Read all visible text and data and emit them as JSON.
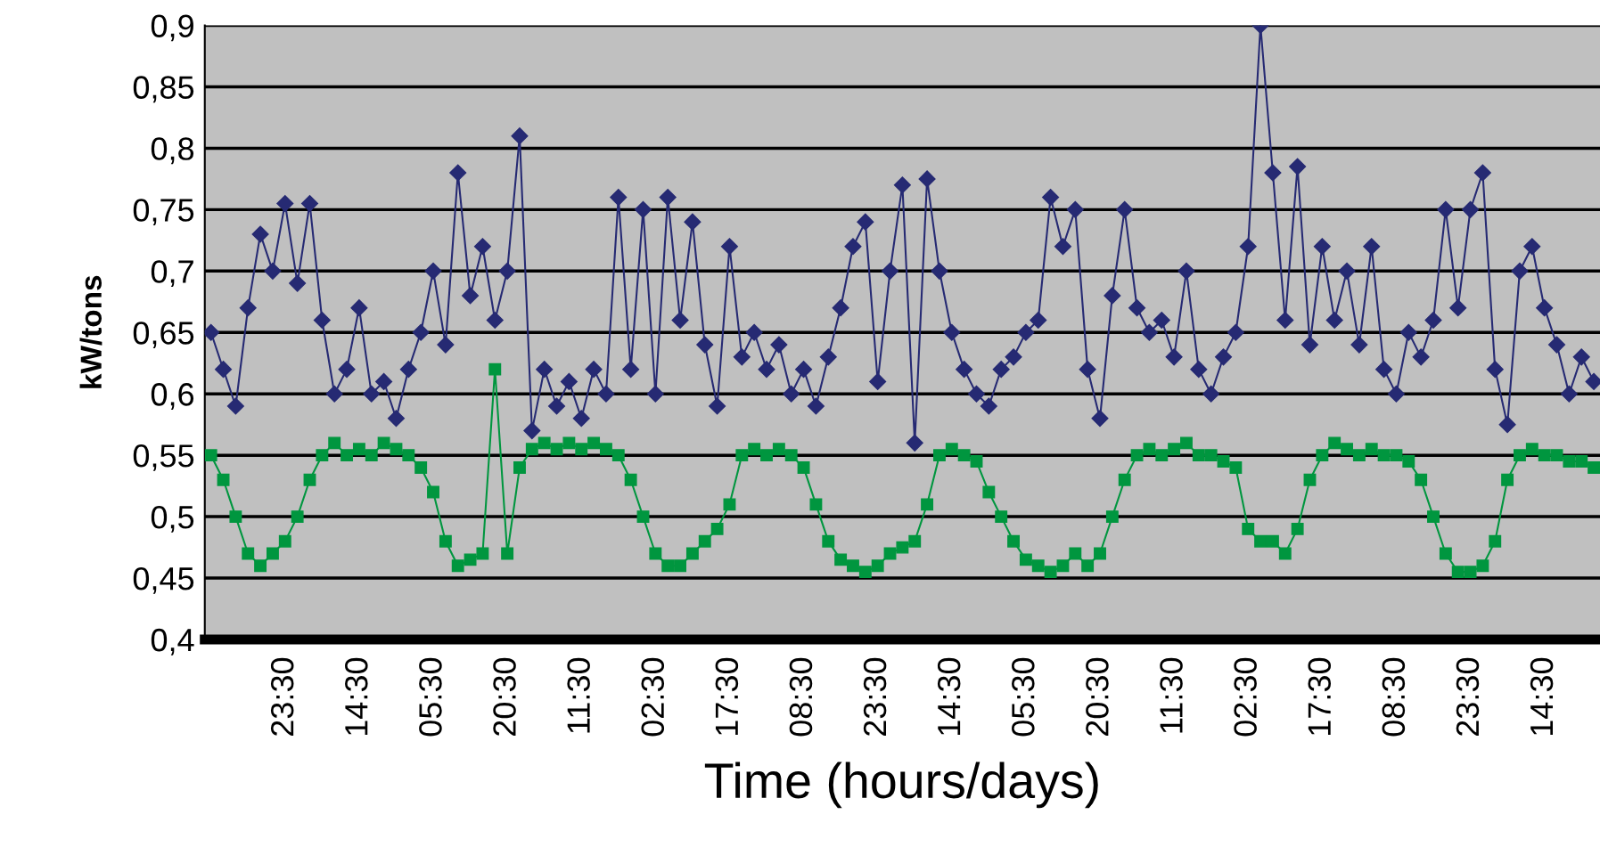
{
  "chart_data": {
    "type": "line",
    "xlabel": "Time (hours/days)",
    "ylabel": "kW/tons",
    "categories": [
      null,
      null,
      null,
      null,
      null,
      null,
      "23:30",
      null,
      null,
      null,
      null,
      null,
      "14:30",
      null,
      null,
      null,
      null,
      null,
      "05:30",
      null,
      null,
      null,
      null,
      null,
      "20:30",
      null,
      null,
      null,
      null,
      null,
      "11:30",
      null,
      null,
      null,
      null,
      null,
      "02:30",
      null,
      null,
      null,
      null,
      null,
      "17:30",
      null,
      null,
      null,
      null,
      null,
      "08:30",
      null,
      null,
      null,
      null,
      null,
      "23:30",
      null,
      null,
      null,
      null,
      null,
      "14:30",
      null,
      null,
      null,
      null,
      null,
      "05:30",
      null,
      null,
      null,
      null,
      null,
      "20:30",
      null,
      null,
      null,
      null,
      null,
      "11:30",
      null,
      null,
      null,
      null,
      null,
      "02:30",
      null,
      null,
      null,
      null,
      null,
      "17:30",
      null,
      null,
      null,
      null,
      null,
      "08:30",
      null,
      null,
      null,
      null,
      null,
      "23:30",
      null,
      null,
      null,
      null,
      null,
      "14:30",
      null,
      null,
      null,
      null
    ],
    "series": [
      {
        "color": "#262a73",
        "marker": "diamond",
        "values": [
          0.65,
          0.62,
          0.59,
          0.67,
          0.73,
          0.7,
          0.755,
          0.69,
          0.755,
          0.66,
          0.6,
          0.62,
          0.67,
          0.6,
          0.61,
          0.58,
          0.62,
          0.65,
          0.7,
          0.64,
          0.78,
          0.68,
          0.72,
          0.66,
          0.7,
          0.81,
          0.57,
          0.62,
          0.59,
          0.61,
          0.58,
          0.62,
          0.6,
          0.76,
          0.62,
          0.75,
          0.6,
          0.76,
          0.66,
          0.74,
          0.64,
          0.59,
          0.72,
          0.63,
          0.65,
          0.62,
          0.64,
          0.6,
          0.62,
          0.59,
          0.63,
          0.67,
          0.72,
          0.74,
          0.61,
          0.7,
          0.77,
          0.56,
          0.775,
          0.7,
          0.65,
          0.62,
          0.6,
          0.59,
          0.62,
          0.63,
          0.65,
          0.66,
          0.76,
          0.72,
          0.75,
          0.62,
          0.58,
          0.68,
          0.75,
          0.67,
          0.65,
          0.66,
          0.63,
          0.7,
          0.62,
          0.6,
          0.63,
          0.65,
          0.72,
          0.9,
          0.78,
          0.66,
          0.785,
          0.64,
          0.72,
          0.66,
          0.7,
          0.64,
          0.72,
          0.62,
          0.6,
          0.65,
          0.63,
          0.66,
          0.75,
          0.67,
          0.75,
          0.78,
          0.62,
          0.575,
          0.7,
          0.72,
          0.67,
          0.64,
          0.6,
          0.63,
          0.61
        ]
      },
      {
        "color": "#00963f",
        "marker": "square",
        "values": [
          0.55,
          0.53,
          0.5,
          0.47,
          0.46,
          0.47,
          0.48,
          0.5,
          0.53,
          0.55,
          0.56,
          0.55,
          0.555,
          0.55,
          0.56,
          0.555,
          0.55,
          0.54,
          0.52,
          0.48,
          0.46,
          0.465,
          0.47,
          0.62,
          0.47,
          0.54,
          0.555,
          0.56,
          0.555,
          0.56,
          0.555,
          0.56,
          0.555,
          0.55,
          0.53,
          0.5,
          0.47,
          0.46,
          0.46,
          0.47,
          0.48,
          0.49,
          0.51,
          0.55,
          0.555,
          0.55,
          0.555,
          0.55,
          0.54,
          0.51,
          0.48,
          0.465,
          0.46,
          0.455,
          0.46,
          0.47,
          0.475,
          0.48,
          0.51,
          0.55,
          0.555,
          0.55,
          0.545,
          0.52,
          0.5,
          0.48,
          0.465,
          0.46,
          0.455,
          0.46,
          0.47,
          0.46,
          0.47,
          0.5,
          0.53,
          0.55,
          0.555,
          0.55,
          0.555,
          0.56,
          0.55,
          0.55,
          0.545,
          0.54,
          0.49,
          0.48,
          0.48,
          0.47,
          0.49,
          0.53,
          0.55,
          0.56,
          0.555,
          0.55,
          0.555,
          0.55,
          0.55,
          0.545,
          0.53,
          0.5,
          0.47,
          0.455,
          0.455,
          0.46,
          0.48,
          0.53,
          0.55,
          0.555,
          0.55,
          0.55,
          0.545,
          0.545,
          0.54
        ]
      }
    ],
    "ylim": [
      0.4,
      0.9
    ],
    "yticks": [
      {
        "value": 0.4,
        "label": "0,4"
      },
      {
        "value": 0.45,
        "label": "0,45"
      },
      {
        "value": 0.5,
        "label": "0,5"
      },
      {
        "value": 0.55,
        "label": "0,55"
      },
      {
        "value": 0.6,
        "label": "0,6"
      },
      {
        "value": 0.65,
        "label": "0,65"
      },
      {
        "value": 0.7,
        "label": "0,7"
      },
      {
        "value": 0.75,
        "label": "0,75"
      },
      {
        "value": 0.8,
        "label": "0,8"
      },
      {
        "value": 0.85,
        "label": "0,85"
      },
      {
        "value": 0.9,
        "label": "0,9"
      }
    ],
    "grid": "y",
    "legend": false,
    "line_style": "solid"
  }
}
